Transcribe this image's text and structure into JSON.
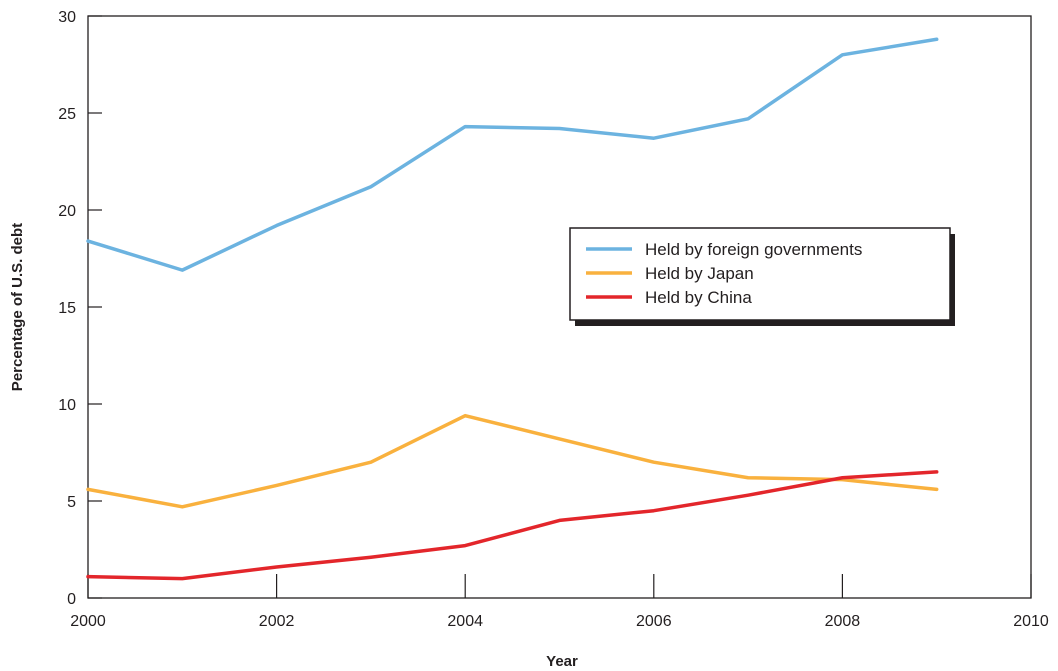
{
  "chart_data": {
    "type": "line",
    "xlabel": "Year",
    "ylabel": "Percentage of U.S. debt",
    "xlim": [
      2000,
      2010
    ],
    "ylim": [
      0,
      30
    ],
    "x_ticks": [
      "2000",
      "2002",
      "2004",
      "2006",
      "2008",
      "2010"
    ],
    "y_ticks": [
      "0",
      "5",
      "10",
      "15",
      "20",
      "25",
      "30"
    ],
    "grid": false,
    "legend_position": "center-right",
    "x": [
      2000,
      2001,
      2002,
      2003,
      2004,
      2005,
      2006,
      2007,
      2008,
      2009
    ],
    "series": [
      {
        "name": "Held by foreign governments",
        "color": "#6cb3e0",
        "values": [
          18.4,
          16.9,
          19.2,
          21.2,
          24.3,
          24.2,
          23.7,
          24.7,
          28.0,
          28.8
        ]
      },
      {
        "name": "Held by Japan",
        "color": "#f9b13e",
        "values": [
          5.6,
          4.7,
          5.8,
          7.0,
          9.4,
          8.2,
          7.0,
          6.2,
          6.1,
          5.6
        ]
      },
      {
        "name": "Held by China",
        "color": "#e3262b",
        "values": [
          1.1,
          1.0,
          1.6,
          2.1,
          2.7,
          4.0,
          4.5,
          5.3,
          6.2,
          6.5
        ]
      }
    ]
  }
}
